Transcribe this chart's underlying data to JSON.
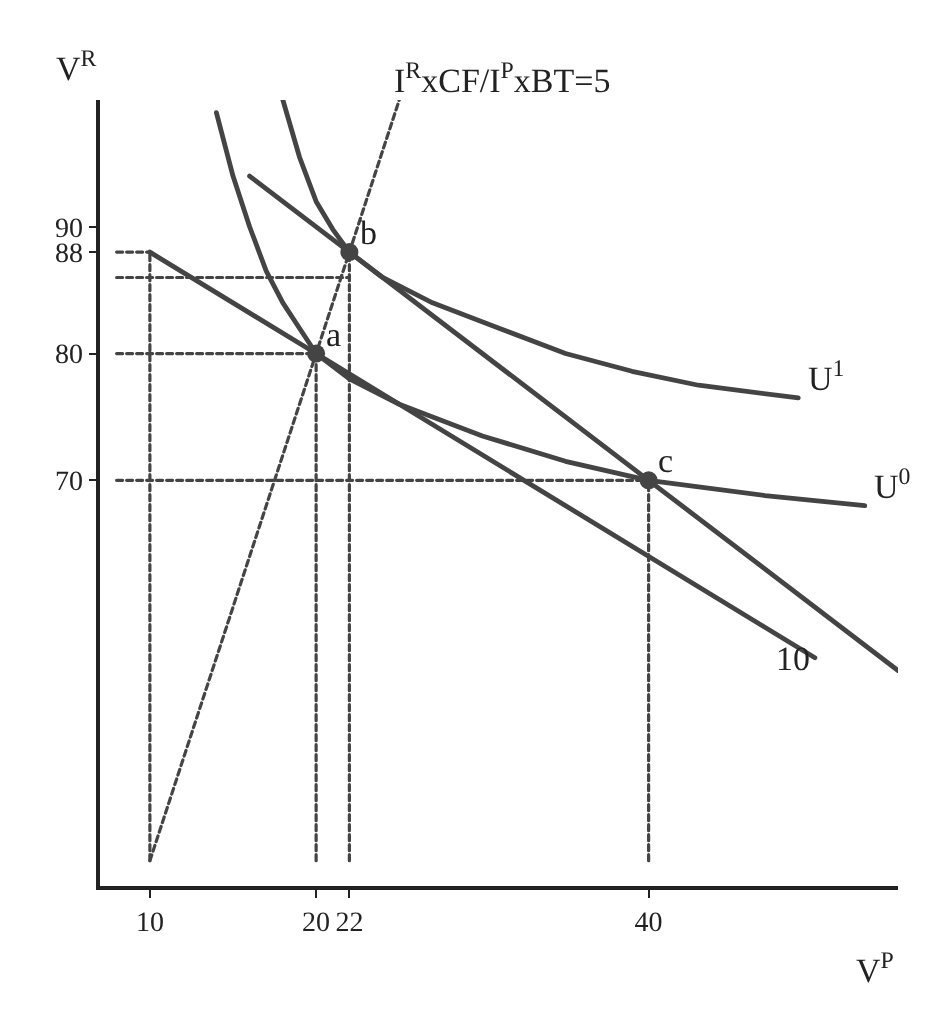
{
  "chart_data": {
    "type": "line",
    "xlabel": "V$^{P}$",
    "ylabel": "V$^{R}$",
    "xlim": [
      7,
      55
    ],
    "ylim": [
      38,
      100
    ],
    "xticks": [
      10,
      20,
      22,
      40
    ],
    "yticks": [
      70,
      80,
      88,
      90
    ],
    "series": [
      {
        "color": "#444444",
        "x": [
          10,
          25
        ],
        "values": [
          40,
          100
        ],
        "line_style": "dotted"
      },
      {
        "color": "#444444",
        "x": [
          10,
          20,
          50
        ],
        "values": [
          88,
          80,
          56
        ]
      },
      {
        "color": "#444444",
        "x": [
          16,
          22,
          40,
          55
        ],
        "values": [
          94,
          88,
          70,
          55
        ]
      },
      {
        "color": "#444444",
        "x": [
          14,
          15,
          16,
          17,
          18,
          19,
          20,
          22,
          25,
          30,
          35,
          40,
          47,
          53
        ],
        "values": [
          99,
          94,
          90,
          86.5,
          84,
          82,
          80,
          78,
          76,
          73.5,
          71.5,
          70,
          68.8,
          68
        ]
      },
      {
        "color": "#444444",
        "x": [
          18,
          19,
          20,
          21,
          22,
          24,
          27,
          31,
          35,
          39,
          43,
          49
        ],
        "values": [
          100,
          95.5,
          92,
          89.8,
          88,
          86,
          84,
          82,
          80,
          78.6,
          77.5,
          76.5
        ]
      },
      {
        "color": "#444444",
        "x": [
          10,
          10
        ],
        "values": [
          40,
          88
        ],
        "line_style": "dotted"
      },
      {
        "color": "#444444",
        "x": [
          20,
          20
        ],
        "values": [
          40,
          80
        ],
        "line_style": "dotted"
      },
      {
        "color": "#444444",
        "x": [
          22,
          22
        ],
        "values": [
          40,
          88
        ],
        "line_style": "dotted"
      },
      {
        "color": "#444444",
        "x": [
          40,
          40
        ],
        "values": [
          40,
          70
        ],
        "line_style": "dotted"
      },
      {
        "color": "#444444",
        "x": [
          8,
          10
        ],
        "values": [
          88,
          88
        ],
        "line_style": "dotted"
      },
      {
        "color": "#444444",
        "x": [
          8,
          20
        ],
        "values": [
          80,
          80
        ],
        "line_style": "dotted"
      },
      {
        "color": "#444444",
        "x": [
          8,
          22
        ],
        "values": [
          86,
          86
        ],
        "line_style": "dotted"
      },
      {
        "color": "#444444",
        "x": [
          8,
          40
        ],
        "values": [
          70,
          70
        ],
        "line_style": "dotted"
      },
      {
        "type": "scatter",
        "color": "#444444",
        "marker": "circle",
        "x": [
          20,
          22,
          40
        ],
        "values": [
          80,
          88,
          70
        ]
      }
    ],
    "annotations": [
      {
        "text": "a",
        "x": 20,
        "y": 80
      },
      {
        "text": "b",
        "x": 22,
        "y": 88
      },
      {
        "text": "c",
        "x": 40,
        "y": 70
      },
      {
        "text": "U$^{1}$",
        "x": 49,
        "y": 76.5
      },
      {
        "text": "U$^{0}$",
        "x": 53,
        "y": 68
      },
      {
        "text": "10",
        "x": 47,
        "y": 58.4
      },
      {
        "text": "I$^{R}$xCF/I$^{P}$xBT=5",
        "x": 25,
        "y": 100
      }
    ]
  }
}
